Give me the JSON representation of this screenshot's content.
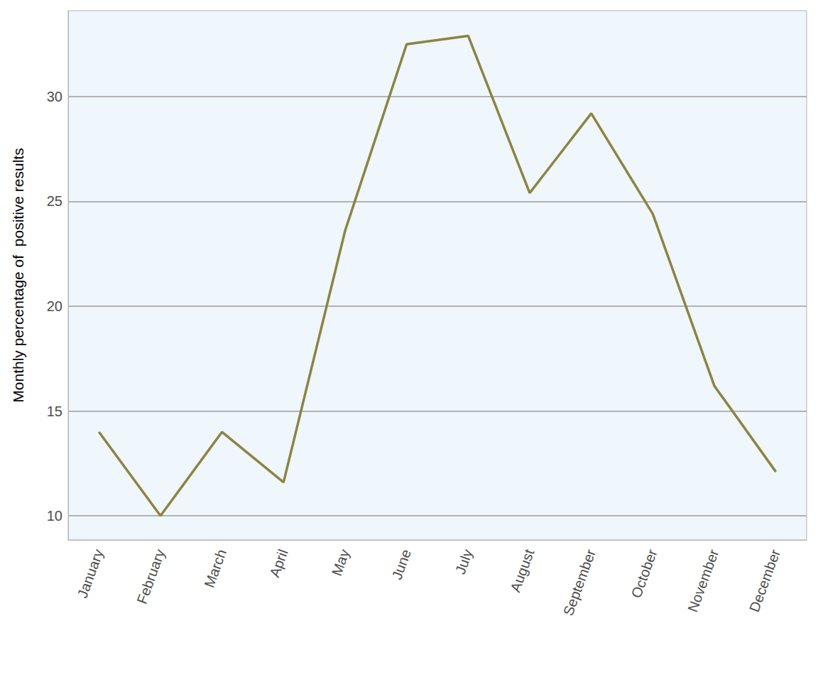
{
  "chart_data": {
    "type": "line",
    "ylabel": "Monthly percentage of  positive results",
    "categories": [
      "January",
      "February",
      "March",
      "April",
      "May",
      "June",
      "July",
      "August",
      "September",
      "October",
      "November",
      "December"
    ],
    "values": [
      14.0,
      10.0,
      14.0,
      11.6,
      23.6,
      32.5,
      32.9,
      25.4,
      29.2,
      24.4,
      16.2,
      12.1
    ],
    "color": "#8a8542",
    "ylim": [
      8.85,
      34.1
    ],
    "yticks": [
      10,
      15,
      20,
      25,
      30
    ],
    "grid": true
  }
}
